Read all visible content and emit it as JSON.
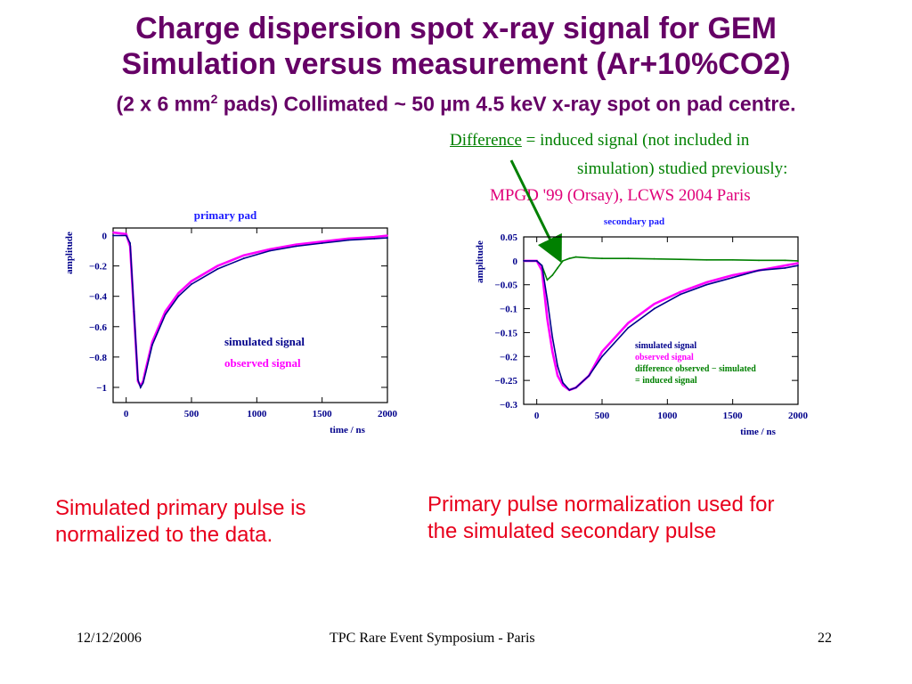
{
  "title": {
    "line1": "Charge dispersion spot x-ray signal for GEM",
    "line2": "Simulation versus measurement (Ar+10%CO2)",
    "line3_prefix": "(2 x 6 mm",
    "line3_sup": "2",
    "line3_suffix": " pads) Collimated ~ 50 µm 4.5 keV x-ray spot on pad centre."
  },
  "annotation": {
    "difference_word": "Difference",
    "line1_rest": " = induced signal (not included in",
    "line2": "simulation) studied previously:",
    "line3": "MPGD '99 (Orsay), LCWS 2004 Paris"
  },
  "captions": {
    "left": [
      "Simulated primary pulse is",
      "normalized to the data."
    ],
    "right": [
      "Primary pulse normalization used for",
      "the simulated secondary pulse"
    ]
  },
  "footer": {
    "date": "12/12/2006",
    "event": "TPC Rare Event Symposium - Paris",
    "page": "22"
  },
  "colors": {
    "title": "#660066",
    "simulated": "#00008b",
    "observed": "#ff00ff",
    "difference": "#008000",
    "caption": "#e8001c",
    "pink_note": "#e0007a"
  },
  "chart_data": [
    {
      "type": "line",
      "title": "primary pad",
      "xlabel": "time / ns",
      "ylabel": "amplitude",
      "xlim": [
        -100,
        2000
      ],
      "ylim": [
        -1.1,
        0.05
      ],
      "xticks": [
        0,
        500,
        1000,
        1500,
        2000
      ],
      "yticks": [
        0,
        -0.2,
        -0.4,
        -0.6,
        -0.8,
        -1
      ],
      "ytick_labels": [
        "0",
        "−0.2",
        "−0.4",
        "−0.6",
        "−0.8",
        "−1"
      ],
      "legend": [
        "simulated signal",
        "observed signal"
      ],
      "legend_position": "center-right",
      "series": [
        {
          "name": "simulated signal",
          "color": "#00008b",
          "x": [
            -100,
            0,
            30,
            60,
            90,
            110,
            130,
            150,
            200,
            300,
            400,
            500,
            700,
            900,
            1100,
            1300,
            1500,
            1700,
            1900,
            2000
          ],
          "y": [
            0,
            0,
            -0.05,
            -0.5,
            -0.95,
            -1.0,
            -0.97,
            -0.9,
            -0.72,
            -0.52,
            -0.4,
            -0.32,
            -0.22,
            -0.15,
            -0.1,
            -0.07,
            -0.05,
            -0.03,
            -0.02,
            -0.015
          ]
        },
        {
          "name": "observed signal",
          "color": "#ff00ff",
          "x": [
            -100,
            0,
            30,
            60,
            90,
            110,
            130,
            150,
            200,
            300,
            400,
            500,
            700,
            900,
            1100,
            1300,
            1500,
            1700,
            1900,
            2000
          ],
          "y": [
            0.02,
            0.01,
            -0.07,
            -0.52,
            -0.96,
            -0.99,
            -0.96,
            -0.88,
            -0.7,
            -0.5,
            -0.38,
            -0.3,
            -0.2,
            -0.13,
            -0.09,
            -0.06,
            -0.04,
            -0.02,
            -0.01,
            0
          ]
        }
      ]
    },
    {
      "type": "line",
      "title": "secondary pad",
      "xlabel": "time / ns",
      "ylabel": "amplitude",
      "xlim": [
        -100,
        2000
      ],
      "ylim": [
        -0.3,
        0.05
      ],
      "xticks": [
        0,
        500,
        1000,
        1500,
        2000
      ],
      "yticks": [
        0.05,
        0,
        -0.05,
        -0.1,
        -0.15,
        -0.2,
        -0.25,
        -0.3
      ],
      "ytick_labels": [
        "0.05",
        "0",
        "−0.05",
        "−0.1",
        "−0.15",
        "−0.2",
        "−0.25",
        "−0.3"
      ],
      "legend": [
        "simulated signal",
        "observed signal",
        "difference observed − simulated",
        "= induced signal"
      ],
      "legend_position": "bottom-right",
      "series": [
        {
          "name": "simulated signal",
          "color": "#00008b",
          "x": [
            -100,
            0,
            40,
            80,
            120,
            160,
            200,
            250,
            300,
            400,
            500,
            700,
            900,
            1100,
            1300,
            1500,
            1700,
            1900,
            2000
          ],
          "y": [
            0,
            0,
            -0.01,
            -0.08,
            -0.16,
            -0.22,
            -0.255,
            -0.27,
            -0.265,
            -0.24,
            -0.2,
            -0.14,
            -0.1,
            -0.07,
            -0.05,
            -0.035,
            -0.02,
            -0.015,
            -0.01
          ]
        },
        {
          "name": "observed signal",
          "color": "#ff00ff",
          "x": [
            -100,
            0,
            40,
            80,
            120,
            160,
            200,
            250,
            300,
            400,
            500,
            700,
            900,
            1100,
            1300,
            1500,
            1700,
            1900,
            2000
          ],
          "y": [
            0,
            0,
            -0.02,
            -0.12,
            -0.19,
            -0.24,
            -0.26,
            -0.27,
            -0.265,
            -0.24,
            -0.19,
            -0.13,
            -0.09,
            -0.065,
            -0.045,
            -0.03,
            -0.02,
            -0.01,
            -0.005
          ]
        },
        {
          "name": "difference observed − simulated",
          "color": "#008000",
          "x": [
            -100,
            0,
            40,
            80,
            120,
            160,
            200,
            250,
            300,
            400,
            500,
            700,
            900,
            1100,
            1300,
            1500,
            1700,
            1900,
            2000
          ],
          "y": [
            0,
            0,
            -0.01,
            -0.04,
            -0.03,
            -0.015,
            0.0,
            0.005,
            0.008,
            0.006,
            0.005,
            0.005,
            0.004,
            0.003,
            0.002,
            0.002,
            0.001,
            0.001,
            0
          ]
        }
      ]
    }
  ]
}
